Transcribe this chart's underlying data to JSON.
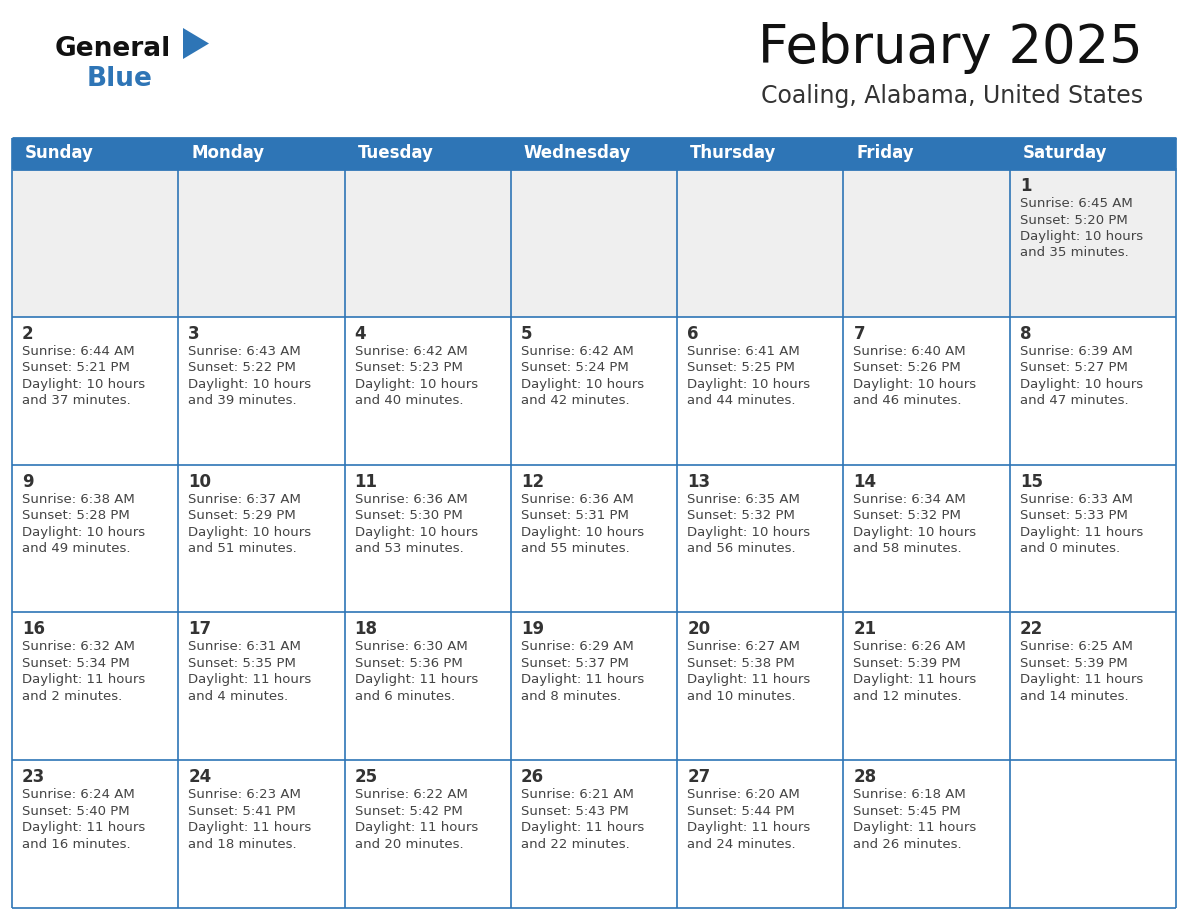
{
  "title": "February 2025",
  "subtitle": "Coaling, Alabama, United States",
  "header_bg": "#2E75B6",
  "header_text_color": "#FFFFFF",
  "cell_bg_week1": "#EFEFEF",
  "cell_bg_other": "#FFFFFF",
  "day_number_color": "#333333",
  "cell_text_color": "#444444",
  "border_color": "#2E75B6",
  "row_divider_color": "#2E75B6",
  "days_of_week": [
    "Sunday",
    "Monday",
    "Tuesday",
    "Wednesday",
    "Thursday",
    "Friday",
    "Saturday"
  ],
  "weeks": [
    [
      {
        "day": null,
        "lines": []
      },
      {
        "day": null,
        "lines": []
      },
      {
        "day": null,
        "lines": []
      },
      {
        "day": null,
        "lines": []
      },
      {
        "day": null,
        "lines": []
      },
      {
        "day": null,
        "lines": []
      },
      {
        "day": "1",
        "lines": [
          "Sunrise: 6:45 AM",
          "Sunset: 5:20 PM",
          "Daylight: 10 hours",
          "and 35 minutes."
        ]
      }
    ],
    [
      {
        "day": "2",
        "lines": [
          "Sunrise: 6:44 AM",
          "Sunset: 5:21 PM",
          "Daylight: 10 hours",
          "and 37 minutes."
        ]
      },
      {
        "day": "3",
        "lines": [
          "Sunrise: 6:43 AM",
          "Sunset: 5:22 PM",
          "Daylight: 10 hours",
          "and 39 minutes."
        ]
      },
      {
        "day": "4",
        "lines": [
          "Sunrise: 6:42 AM",
          "Sunset: 5:23 PM",
          "Daylight: 10 hours",
          "and 40 minutes."
        ]
      },
      {
        "day": "5",
        "lines": [
          "Sunrise: 6:42 AM",
          "Sunset: 5:24 PM",
          "Daylight: 10 hours",
          "and 42 minutes."
        ]
      },
      {
        "day": "6",
        "lines": [
          "Sunrise: 6:41 AM",
          "Sunset: 5:25 PM",
          "Daylight: 10 hours",
          "and 44 minutes."
        ]
      },
      {
        "day": "7",
        "lines": [
          "Sunrise: 6:40 AM",
          "Sunset: 5:26 PM",
          "Daylight: 10 hours",
          "and 46 minutes."
        ]
      },
      {
        "day": "8",
        "lines": [
          "Sunrise: 6:39 AM",
          "Sunset: 5:27 PM",
          "Daylight: 10 hours",
          "and 47 minutes."
        ]
      }
    ],
    [
      {
        "day": "9",
        "lines": [
          "Sunrise: 6:38 AM",
          "Sunset: 5:28 PM",
          "Daylight: 10 hours",
          "and 49 minutes."
        ]
      },
      {
        "day": "10",
        "lines": [
          "Sunrise: 6:37 AM",
          "Sunset: 5:29 PM",
          "Daylight: 10 hours",
          "and 51 minutes."
        ]
      },
      {
        "day": "11",
        "lines": [
          "Sunrise: 6:36 AM",
          "Sunset: 5:30 PM",
          "Daylight: 10 hours",
          "and 53 minutes."
        ]
      },
      {
        "day": "12",
        "lines": [
          "Sunrise: 6:36 AM",
          "Sunset: 5:31 PM",
          "Daylight: 10 hours",
          "and 55 minutes."
        ]
      },
      {
        "day": "13",
        "lines": [
          "Sunrise: 6:35 AM",
          "Sunset: 5:32 PM",
          "Daylight: 10 hours",
          "and 56 minutes."
        ]
      },
      {
        "day": "14",
        "lines": [
          "Sunrise: 6:34 AM",
          "Sunset: 5:32 PM",
          "Daylight: 10 hours",
          "and 58 minutes."
        ]
      },
      {
        "day": "15",
        "lines": [
          "Sunrise: 6:33 AM",
          "Sunset: 5:33 PM",
          "Daylight: 11 hours",
          "and 0 minutes."
        ]
      }
    ],
    [
      {
        "day": "16",
        "lines": [
          "Sunrise: 6:32 AM",
          "Sunset: 5:34 PM",
          "Daylight: 11 hours",
          "and 2 minutes."
        ]
      },
      {
        "day": "17",
        "lines": [
          "Sunrise: 6:31 AM",
          "Sunset: 5:35 PM",
          "Daylight: 11 hours",
          "and 4 minutes."
        ]
      },
      {
        "day": "18",
        "lines": [
          "Sunrise: 6:30 AM",
          "Sunset: 5:36 PM",
          "Daylight: 11 hours",
          "and 6 minutes."
        ]
      },
      {
        "day": "19",
        "lines": [
          "Sunrise: 6:29 AM",
          "Sunset: 5:37 PM",
          "Daylight: 11 hours",
          "and 8 minutes."
        ]
      },
      {
        "day": "20",
        "lines": [
          "Sunrise: 6:27 AM",
          "Sunset: 5:38 PM",
          "Daylight: 11 hours",
          "and 10 minutes."
        ]
      },
      {
        "day": "21",
        "lines": [
          "Sunrise: 6:26 AM",
          "Sunset: 5:39 PM",
          "Daylight: 11 hours",
          "and 12 minutes."
        ]
      },
      {
        "day": "22",
        "lines": [
          "Sunrise: 6:25 AM",
          "Sunset: 5:39 PM",
          "Daylight: 11 hours",
          "and 14 minutes."
        ]
      }
    ],
    [
      {
        "day": "23",
        "lines": [
          "Sunrise: 6:24 AM",
          "Sunset: 5:40 PM",
          "Daylight: 11 hours",
          "and 16 minutes."
        ]
      },
      {
        "day": "24",
        "lines": [
          "Sunrise: 6:23 AM",
          "Sunset: 5:41 PM",
          "Daylight: 11 hours",
          "and 18 minutes."
        ]
      },
      {
        "day": "25",
        "lines": [
          "Sunrise: 6:22 AM",
          "Sunset: 5:42 PM",
          "Daylight: 11 hours",
          "and 20 minutes."
        ]
      },
      {
        "day": "26",
        "lines": [
          "Sunrise: 6:21 AM",
          "Sunset: 5:43 PM",
          "Daylight: 11 hours",
          "and 22 minutes."
        ]
      },
      {
        "day": "27",
        "lines": [
          "Sunrise: 6:20 AM",
          "Sunset: 5:44 PM",
          "Daylight: 11 hours",
          "and 24 minutes."
        ]
      },
      {
        "day": "28",
        "lines": [
          "Sunrise: 6:18 AM",
          "Sunset: 5:45 PM",
          "Daylight: 11 hours",
          "and 26 minutes."
        ]
      },
      {
        "day": null,
        "lines": []
      }
    ]
  ],
  "logo_text_color": "#111111",
  "logo_blue_color": "#2E75B6",
  "title_fontsize": 38,
  "subtitle_fontsize": 17,
  "header_fontsize": 12,
  "day_num_fontsize": 12,
  "cell_text_fontsize": 9.5
}
